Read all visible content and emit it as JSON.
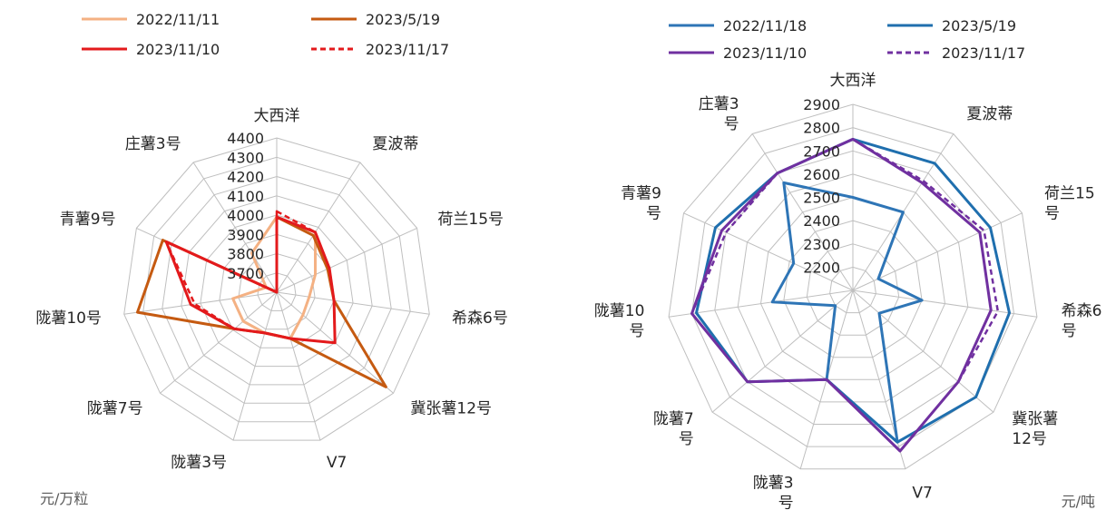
{
  "chart_data": [
    {
      "type": "radar",
      "unit": "元/万粒",
      "categories": [
        "大西洋",
        "夏波蒂",
        "荷兰15号",
        "希森6号",
        "冀张薯12号",
        "V7",
        "陇薯3号",
        "陇薯7号",
        "陇薯10号",
        "青薯9号",
        "庄薯3号"
      ],
      "rticks": [
        3700,
        3800,
        3900,
        4000,
        4100,
        4200,
        4300,
        4400
      ],
      "rlim": [
        3600,
        4400
      ],
      "grid": true,
      "legend": "top",
      "series": [
        {
          "name": "2022/11/11",
          "color": "#F4B183",
          "dash": false,
          "values": [
            3990,
            3970,
            3820,
            3770,
            3780,
            3850,
            3820,
            3830,
            3830,
            3660,
            3840
          ]
        },
        {
          "name": "2023/5/19",
          "color": "#C55A11",
          "dash": false,
          "values": [
            3990,
            3950,
            3890,
            3900,
            4350,
            3850,
            3820,
            3890,
            4330,
            4250,
            3600
          ]
        },
        {
          "name": "2023/11/10",
          "color": "#E31A1C",
          "dash": false,
          "values": [
            3990,
            3970,
            3900,
            3900,
            4000,
            3850,
            3820,
            3890,
            4050,
            4230,
            3600
          ]
        },
        {
          "name": "2023/11/17",
          "color": "#E31A1C",
          "dash": true,
          "values": [
            4020,
            3970,
            3900,
            3900,
            4000,
            3850,
            3820,
            3890,
            4030,
            4230,
            3600
          ]
        }
      ]
    },
    {
      "type": "radar",
      "unit": "元/吨",
      "categories": [
        "大西洋",
        "夏波蒂",
        "荷兰15号",
        "希森6号",
        "冀张薯12号",
        "V7",
        "陇薯3号",
        "陇薯7号",
        "陇薯10号",
        "青薯9号",
        "庄薯3号"
      ],
      "rticks": [
        2200,
        2300,
        2400,
        2500,
        2600,
        2700,
        2800,
        2900
      ],
      "rlim": [
        2100,
        2900
      ],
      "grid": true,
      "legend": "top",
      "series": [
        {
          "name": "2022/11/18",
          "color": "#2E75B6",
          "dash": false,
          "values": [
            2500,
            2500,
            2220,
            2400,
            2250,
            2780,
            2500,
            2200,
            2450,
            2380,
            2650
          ]
        },
        {
          "name": "2023/5/19",
          "color": "#1F6FAE",
          "dash": false,
          "values": [
            2750,
            2750,
            2750,
            2780,
            2800,
            2780,
            2500,
            2700,
            2780,
            2750,
            2700
          ]
        },
        {
          "name": "2023/11/10",
          "color": "#7030A0",
          "dash": false,
          "values": [
            2750,
            2650,
            2700,
            2700,
            2700,
            2820,
            2500,
            2700,
            2800,
            2720,
            2700
          ]
        },
        {
          "name": "2023/11/17",
          "color": "#7030A0",
          "dash": true,
          "values": [
            2750,
            2660,
            2720,
            2730,
            2700,
            2820,
            2500,
            2700,
            2800,
            2700,
            2700
          ]
        }
      ]
    }
  ]
}
